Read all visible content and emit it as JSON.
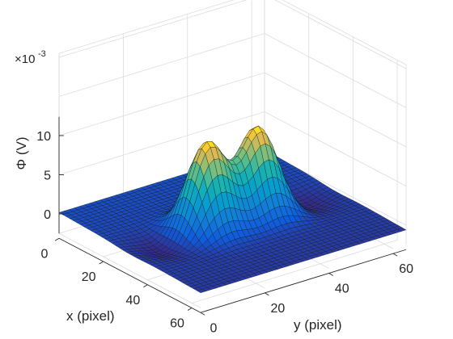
{
  "chart_data": {
    "type": "surface",
    "zlabel": "Φ (V)",
    "xlabel": "x (pixel)",
    "ylabel": "y (pixel)",
    "z_exponent_label": "×10",
    "z_exponent_power": "-3",
    "x_ticks": [
      "0",
      "20",
      "40",
      "60"
    ],
    "y_ticks": [
      "0",
      "20",
      "40",
      "60"
    ],
    "z_ticks": [
      "0",
      "5",
      "10"
    ],
    "x_range": [
      0,
      64
    ],
    "y_range": [
      0,
      64
    ],
    "z_range": [
      -2.5,
      13
    ],
    "grid": true,
    "colormap": "parula",
    "peaks": [
      {
        "x": 32,
        "y": 24,
        "amplitude": 11.2,
        "sigma": 5.5
      },
      {
        "x": 32,
        "y": 40,
        "amplitude": 11.2,
        "sigma": 5.5
      }
    ],
    "side_troughs": [
      {
        "x": 32,
        "y": 12,
        "amplitude": -1.4,
        "sigma": 6
      },
      {
        "x": 32,
        "y": 52,
        "amplitude": -1.4,
        "sigma": 6
      }
    ],
    "peak_value": 11.2,
    "baseline_value": 0
  }
}
